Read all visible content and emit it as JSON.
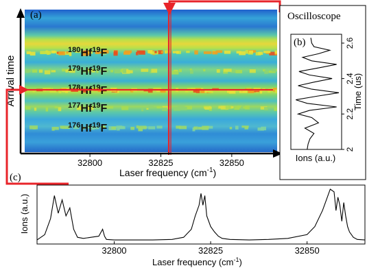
{
  "chart_data": [
    {
      "panel": "(a)",
      "type": "heatmap",
      "xlabel": "Laser frequency (cm",
      "xlabel_sup": "-1",
      "xlabel_close": ")",
      "ylabel": "Arrival time",
      "xlim": [
        32777,
        32866
      ],
      "xticks": [
        32800,
        32825,
        32850
      ],
      "selected_frequency": 32825,
      "selected_isotope": "178",
      "isotope_bands": [
        {
          "mass": "180",
          "a": "Hf",
          "fmass": "19",
          "b": "F",
          "strength": "strong"
        },
        {
          "mass": "179",
          "a": "Hf",
          "fmass": "19",
          "b": "F",
          "strength": "medium"
        },
        {
          "mass": "178",
          "a": "Hf",
          "fmass": "19",
          "b": "F",
          "strength": "strong"
        },
        {
          "mass": "177",
          "a": "Hf",
          "fmass": "19",
          "b": "F",
          "strength": "medium"
        },
        {
          "mass": "176",
          "a": "Hf",
          "fmass": "19",
          "b": "F",
          "strength": "weak"
        }
      ],
      "colors": {
        "background": "#2a6fd6",
        "highlight": "#e8242a"
      }
    },
    {
      "panel": "(b)",
      "type": "line",
      "title": "Oscilloscope",
      "xlabel": "Ions (a.u.)",
      "ylabel": "Time (us)",
      "ylim": [
        2.0,
        2.65
      ],
      "yticks": [
        2,
        2.2,
        2.4,
        2.6
      ],
      "ytick_labels": [
        "2",
        "2.2",
        "2.4",
        "2.6"
      ],
      "time_us": [
        2.0,
        2.03,
        2.06,
        2.09,
        2.12,
        2.15,
        2.18,
        2.2,
        2.22,
        2.24,
        2.26,
        2.28,
        2.3,
        2.32,
        2.34,
        2.36,
        2.38,
        2.4,
        2.42,
        2.44,
        2.46,
        2.48,
        2.5,
        2.52,
        2.54,
        2.56,
        2.58,
        2.6,
        2.63
      ],
      "ions": [
        0.3,
        0.32,
        0.36,
        0.45,
        0.25,
        0.55,
        0.4,
        0.1,
        0.35,
        0.95,
        0.3,
        0.05,
        0.5,
        1.0,
        0.4,
        0.1,
        0.45,
        0.85,
        0.35,
        0.12,
        0.55,
        0.95,
        0.4,
        0.2,
        0.55,
        0.8,
        0.45,
        0.4,
        0.38
      ]
    },
    {
      "panel": "(c)",
      "type": "line",
      "xlabel": "Laser frequency (cm",
      "xlabel_sup": "-1",
      "xlabel_close": ")",
      "ylabel": "Ions (a.u.)",
      "xlim": [
        32780,
        32865
      ],
      "xticks": [
        32800,
        32825,
        32850
      ],
      "x": [
        32780,
        32782,
        32783.5,
        32784.5,
        32785.5,
        32786.5,
        32787.5,
        32788.5,
        32789.5,
        32790.5,
        32792,
        32794,
        32796,
        32797,
        32797.5,
        32798,
        32800,
        32805,
        32810,
        32815,
        32818,
        32820,
        32821,
        32822,
        32822.5,
        32823,
        32823.5,
        32824,
        32825,
        32826,
        32827,
        32828,
        32830,
        32835,
        32840,
        32845,
        32850,
        32852,
        32854,
        32855,
        32856,
        32857,
        32857.5,
        32858,
        32858.5,
        32859,
        32859.5,
        32860,
        32860.5,
        32861,
        32862,
        32863,
        32865
      ],
      "y": [
        0.05,
        0.15,
        0.45,
        0.88,
        0.55,
        0.8,
        0.5,
        0.65,
        0.25,
        0.1,
        0.08,
        0.1,
        0.12,
        0.25,
        0.12,
        0.06,
        0.05,
        0.05,
        0.05,
        0.06,
        0.1,
        0.25,
        0.5,
        0.7,
        0.92,
        0.7,
        0.88,
        0.5,
        0.3,
        0.2,
        0.12,
        0.08,
        0.06,
        0.05,
        0.06,
        0.08,
        0.15,
        0.3,
        0.6,
        0.8,
        1.0,
        0.95,
        0.6,
        0.85,
        0.7,
        0.4,
        0.75,
        0.5,
        0.3,
        0.2,
        0.1,
        0.06,
        0.05
      ]
    }
  ]
}
